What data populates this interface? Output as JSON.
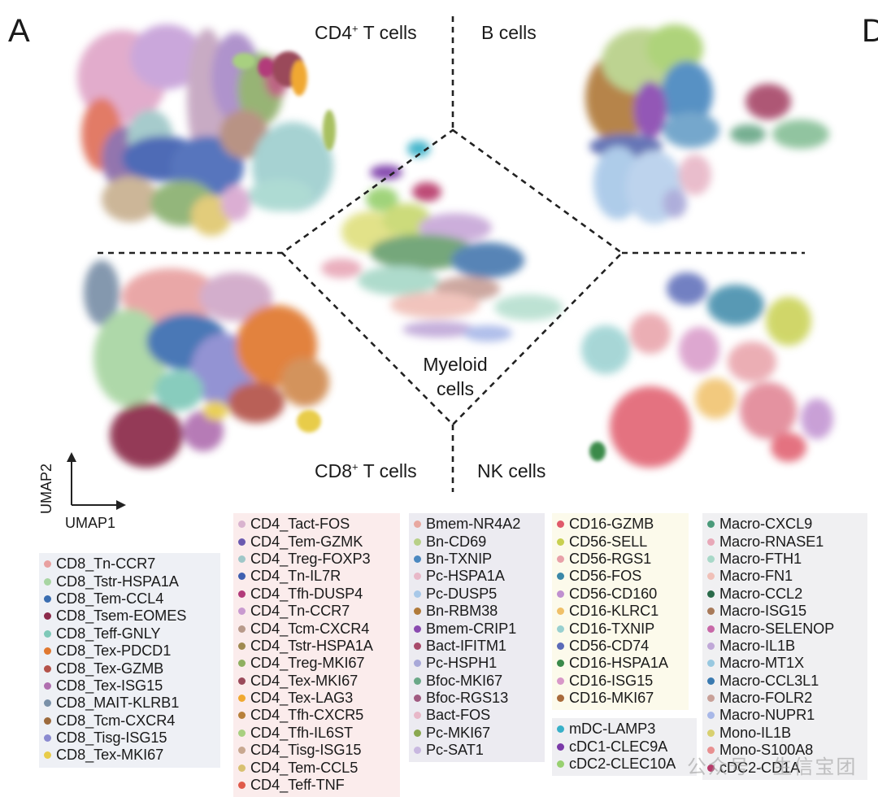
{
  "figure": {
    "panel_letter": "A",
    "panel_letter_next": "D",
    "regions": {
      "cd4_t": "CD4",
      "cd4_suffix": " T cells",
      "b_cells": "B cells",
      "cd8_t": "CD8",
      "cd8_suffix": " T cells",
      "nk_cells": "NK cells",
      "myeloid_line1": "Myeloid",
      "myeloid_line2": "cells",
      "superscript": "+"
    },
    "axes": {
      "x_label": "UMAP1",
      "y_label": "UMAP2"
    },
    "watermark": "公众号 · 生信宝团"
  },
  "legends": {
    "cd8": [
      {
        "label": "CD8_Tn-CCR7",
        "color": "#e8a0a0"
      },
      {
        "label": "CD8_Tstr-HSPA1A",
        "color": "#a8d5a2"
      },
      {
        "label": "CD8_Tem-CCL4",
        "color": "#3a6db0"
      },
      {
        "label": "CD8_Tsem-EOMES",
        "color": "#8b2a4a"
      },
      {
        "label": "CD8_Teff-GNLY",
        "color": "#7ec8b8"
      },
      {
        "label": "CD8_Tex-PDCD1",
        "color": "#e0782f"
      },
      {
        "label": "CD8_Tex-GZMB",
        "color": "#b4524a"
      },
      {
        "label": "CD8_Tex-ISG15",
        "color": "#b06fb0"
      },
      {
        "label": "CD8_MAIT-KLRB1",
        "color": "#7a90a8"
      },
      {
        "label": "CD8_Tcm-CXCR4",
        "color": "#9c6a3c"
      },
      {
        "label": "CD8_Tisg-ISG15",
        "color": "#8a8ad0"
      },
      {
        "label": "CD8_Tex-MKI67",
        "color": "#e8cc4a"
      }
    ],
    "cd4": [
      {
        "label": "CD4_Tact-FOS",
        "color": "#d9b3cf"
      },
      {
        "label": "CD4_Tem-GZMK",
        "color": "#6a5ab0"
      },
      {
        "label": "CD4_Treg-FOXP3",
        "color": "#9fc7c8"
      },
      {
        "label": "CD4_Tn-IL7R",
        "color": "#3f5fb0"
      },
      {
        "label": "CD4_Tfh-DUSP4",
        "color": "#b23a7a"
      },
      {
        "label": "CD4_Tn-CCR7",
        "color": "#c99ad0"
      },
      {
        "label": "CD4_Tcm-CXCR4",
        "color": "#b89a8a"
      },
      {
        "label": "CD4_Tstr-HSPA1A",
        "color": "#a08a50"
      },
      {
        "label": "CD4_Treg-MKI67",
        "color": "#8fb060"
      },
      {
        "label": "CD4_Tex-MKI67",
        "color": "#9a4a5a"
      },
      {
        "label": "CD4_Tex-LAG3",
        "color": "#f0a830"
      },
      {
        "label": "CD4_Tfh-CXCR5",
        "color": "#b8803a"
      },
      {
        "label": "CD4_Tfh-IL6ST",
        "color": "#a8d080"
      },
      {
        "label": "CD4_Tisg-ISG15",
        "color": "#c8a890"
      },
      {
        "label": "CD4_Tem-CCL5",
        "color": "#d8c070"
      },
      {
        "label": "CD4_Teff-TNF",
        "color": "#e05a4a"
      }
    ],
    "b": [
      {
        "label": "Bmem-NR4A2",
        "color": "#e8a8a0"
      },
      {
        "label": "Bn-CD69",
        "color": "#b8d088"
      },
      {
        "label": "Bn-TXNIP",
        "color": "#4a88c0"
      },
      {
        "label": "Pc-HSPA1A",
        "color": "#e8b8c8"
      },
      {
        "label": "Pc-DUSP5",
        "color": "#a8c8e8"
      },
      {
        "label": "Bn-RBM38",
        "color": "#b07a3a"
      },
      {
        "label": "Bmem-CRIP1",
        "color": "#8a4ab0"
      },
      {
        "label": "Bact-IFITM1",
        "color": "#a84a6a"
      },
      {
        "label": "Pc-HSPH1",
        "color": "#a8a8d8"
      },
      {
        "label": "Bfoc-MKI67",
        "color": "#6aa888"
      },
      {
        "label": "Bfoc-RGS13",
        "color": "#a05a80"
      },
      {
        "label": "Bact-FOS",
        "color": "#e8b8c8"
      },
      {
        "label": "Pc-MKI67",
        "color": "#8aa850"
      },
      {
        "label": "Pc-SAT1",
        "color": "#c8b8e0"
      }
    ],
    "nk": [
      {
        "label": "CD16-GZMB",
        "color": "#e05a6a"
      },
      {
        "label": "CD56-SELL",
        "color": "#c8d050"
      },
      {
        "label": "CD56-RGS1",
        "color": "#e8a0a8"
      },
      {
        "label": "CD56-FOS",
        "color": "#3a88a8"
      },
      {
        "label": "CD56-CD160",
        "color": "#c090d0"
      },
      {
        "label": "CD16-KLRC1",
        "color": "#f0c068"
      },
      {
        "label": "CD16-TXNIP",
        "color": "#98d0d0"
      },
      {
        "label": "CD56-CD74",
        "color": "#5a6ab8"
      },
      {
        "label": "CD16-HSPA1A",
        "color": "#3a8a4a"
      },
      {
        "label": "CD16-ISG15",
        "color": "#d898c8"
      },
      {
        "label": "CD16-MKI67",
        "color": "#a86a3a"
      }
    ],
    "dc": [
      {
        "label": "mDC-LAMP3",
        "color": "#38b0c8"
      },
      {
        "label": "cDC1-CLEC9A",
        "color": "#7a3aa8"
      },
      {
        "label": "cDC2-CLEC10A",
        "color": "#98d070"
      }
    ],
    "macro": [
      {
        "label": "Macro-CXCL9",
        "color": "#4a9a7a"
      },
      {
        "label": "Macro-RNASE1",
        "color": "#e8a8b8"
      },
      {
        "label": "Macro-FTH1",
        "color": "#a8d8c8"
      },
      {
        "label": "Macro-FN1",
        "color": "#f0c0b8"
      },
      {
        "label": "Macro-CCL2",
        "color": "#2a6a4a"
      },
      {
        "label": "Macro-ISG15",
        "color": "#a87a5a"
      },
      {
        "label": "Macro-SELENOP",
        "color": "#c868a8"
      },
      {
        "label": "Macro-IL1B",
        "color": "#c0a8d8"
      },
      {
        "label": "Macro-MT1X",
        "color": "#98c8e0"
      },
      {
        "label": "Macro-CCL3L1",
        "color": "#3a7ab0"
      },
      {
        "label": "Macro-FOLR2",
        "color": "#c8a098"
      },
      {
        "label": "Macro-NUPR1",
        "color": "#a8b8e8"
      },
      {
        "label": "Mono-IL1B",
        "color": "#d8d070"
      },
      {
        "label": "Mono-S100A8",
        "color": "#e89090"
      },
      {
        "label": "cDC2-CD1A",
        "color": "#b83a6a"
      }
    ]
  }
}
